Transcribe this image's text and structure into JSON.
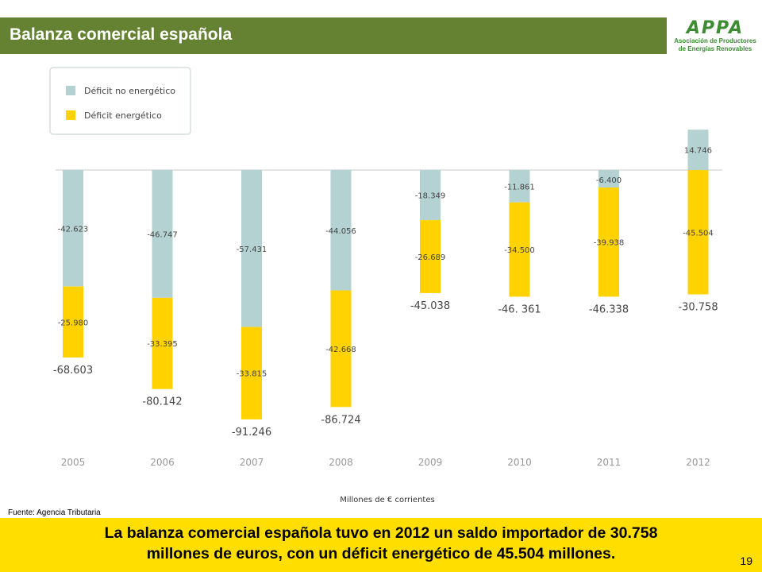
{
  "header": {
    "title": "Balanza comercial española"
  },
  "logo": {
    "acronym": "APPA",
    "line1": "Asociación de Productores",
    "line2": "de Energías Renovables"
  },
  "chart_data": {
    "type": "bar",
    "stacked": true,
    "categories": [
      "2005",
      "2006",
      "2007",
      "2008",
      "2009",
      "2010",
      "2011",
      "2012"
    ],
    "series": [
      {
        "name": "Déficit no energético",
        "color": "#b4d2d2",
        "values": [
          -42.623,
          -46.747,
          -57.431,
          -44.056,
          -18.349,
          -11.861,
          -6.4,
          14.746
        ],
        "labels": [
          "-42.623",
          "-46.747",
          "-57.431",
          "-44.056",
          "-18.349",
          "-11.861",
          "-6.400",
          "14.746"
        ]
      },
      {
        "name": "Déficit energético",
        "color": "#ffd200",
        "values": [
          -25.98,
          -33.395,
          -33.815,
          -42.668,
          -26.689,
          -34.5,
          -39.938,
          -45.504
        ],
        "labels": [
          "-25.980",
          "-33.395",
          "-33.815",
          "-42.668",
          "-26.689",
          "-34.500",
          "-39.938",
          "-45.504"
        ]
      }
    ],
    "totals": [
      "-68.603",
      "-80.142",
      "-91.246",
      "-86.724",
      "-45.038",
      "-46. 361",
      "-46.338",
      "-30.758"
    ],
    "xlabel": "Millones de € corrientes",
    "legend_position": "top-left",
    "grid": false
  },
  "source": "Fuente: Agencia Tributaria",
  "footer": {
    "line1": "La balanza comercial española tuvo en 2012 un saldo importador de 30.758",
    "line2": "millones de euros, con un déficit energético de 45.504 millones."
  },
  "page_number": "19",
  "colors": {
    "header": "#648232",
    "footer": "#ffde00",
    "logo_green": "#3c8c32"
  }
}
